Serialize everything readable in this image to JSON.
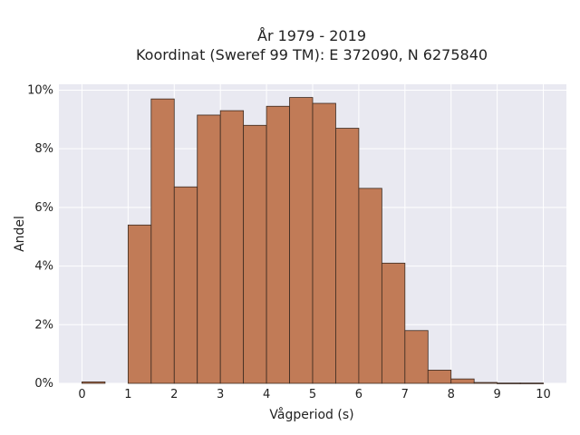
{
  "chart_data": {
    "type": "bar",
    "title": [
      "År 1979 - 2019",
      "Koordinat (Sweref 99 TM): E 372090, N 6275840"
    ],
    "xlabel": "Vågperiod (s)",
    "ylabel": "Andel",
    "xlim": [
      -0.5,
      10.5
    ],
    "ylim": [
      0,
      10.2
    ],
    "xticks": [
      0,
      1,
      2,
      3,
      4,
      5,
      6,
      7,
      8,
      9,
      10
    ],
    "yticks": [
      0,
      2,
      4,
      6,
      8,
      10
    ],
    "ytick_suffix": "%",
    "bin_width": 0.5,
    "bins": [
      {
        "x0": 0.0,
        "value": 0.05
      },
      {
        "x0": 0.5,
        "value": 0.0
      },
      {
        "x0": 1.0,
        "value": 5.4
      },
      {
        "x0": 1.5,
        "value": 9.7
      },
      {
        "x0": 2.0,
        "value": 6.7
      },
      {
        "x0": 2.5,
        "value": 9.15
      },
      {
        "x0": 3.0,
        "value": 9.3
      },
      {
        "x0": 3.5,
        "value": 8.8
      },
      {
        "x0": 4.0,
        "value": 9.45
      },
      {
        "x0": 4.5,
        "value": 9.75
      },
      {
        "x0": 5.0,
        "value": 9.55
      },
      {
        "x0": 5.5,
        "value": 8.7
      },
      {
        "x0": 6.0,
        "value": 6.65
      },
      {
        "x0": 6.5,
        "value": 4.1
      },
      {
        "x0": 7.0,
        "value": 1.8
      },
      {
        "x0": 7.5,
        "value": 0.45
      },
      {
        "x0": 8.0,
        "value": 0.15
      },
      {
        "x0": 8.5,
        "value": 0.03
      },
      {
        "x0": 9.0,
        "value": 0.01
      },
      {
        "x0": 9.5,
        "value": 0.01
      }
    ],
    "grid": true,
    "colors": {
      "bar_fill": "#c17b57",
      "bar_edge": "#3b2a20",
      "plot_background": "#e9e9f1",
      "grid": "#ffffff"
    }
  }
}
